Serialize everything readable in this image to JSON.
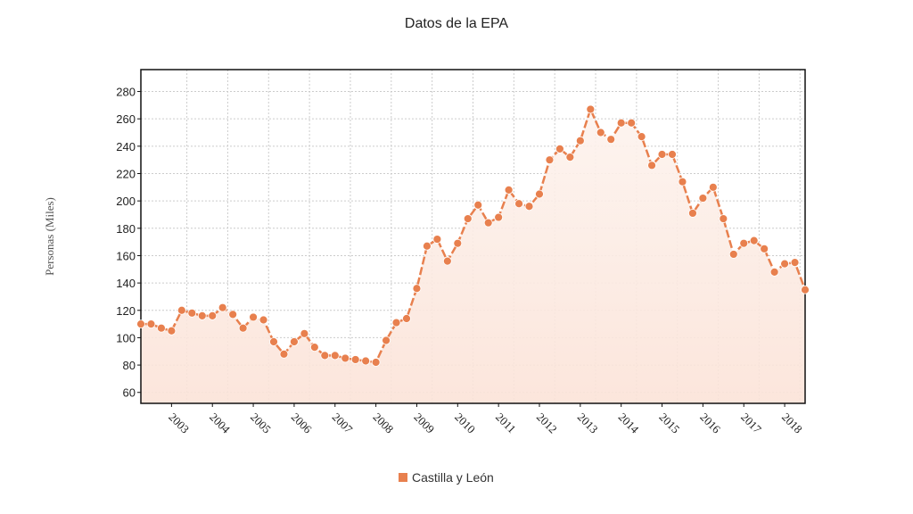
{
  "chart_data": {
    "type": "area",
    "title": "",
    "subtitle": "Datos de la EPA",
    "xlabel": "",
    "ylabel": "Personas (Miles)",
    "ylim": [
      52,
      296
    ],
    "yticks": [
      60,
      80,
      100,
      120,
      140,
      160,
      180,
      200,
      220,
      240,
      260,
      280
    ],
    "xtick_labels": [
      "2003",
      "2004",
      "2005",
      "2006",
      "2007",
      "2008",
      "2009",
      "2010",
      "2011",
      "2012",
      "2013",
      "2014",
      "2015",
      "2016",
      "2017",
      "2018"
    ],
    "grid": true,
    "legend_position": "bottom",
    "series": [
      {
        "name": "Castilla y León",
        "color": "#e8804e",
        "values": [
          110,
          110,
          107,
          105,
          120,
          118,
          116,
          116,
          122,
          117,
          107,
          115,
          113,
          97,
          88,
          97,
          103,
          93,
          87,
          87,
          85,
          84,
          83,
          82,
          98,
          111,
          114,
          136,
          167,
          172,
          156,
          169,
          187,
          197,
          184,
          188,
          208,
          198,
          196,
          205,
          230,
          238,
          232,
          244,
          267,
          250,
          245,
          257,
          257,
          247,
          226,
          234,
          234,
          214,
          191,
          202,
          210,
          187,
          161,
          169,
          171,
          165,
          148,
          154,
          155,
          135
        ]
      }
    ]
  }
}
